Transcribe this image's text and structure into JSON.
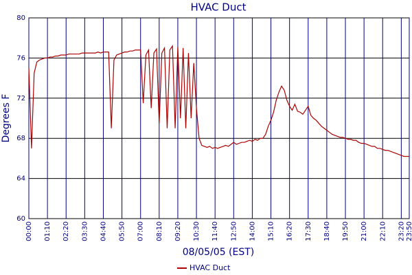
{
  "chart_data": {
    "type": "line",
    "title": "HVAC Duct",
    "x_label": "08/05/05 (EST)",
    "y_label": "Degrees F",
    "x": [
      "00:00",
      "00:10",
      "00:20",
      "00:30",
      "00:40",
      "00:50",
      "01:00",
      "01:10",
      "01:20",
      "01:30",
      "01:40",
      "01:50",
      "02:00",
      "02:10",
      "02:20",
      "02:30",
      "02:40",
      "02:50",
      "03:00",
      "03:10",
      "03:20",
      "03:30",
      "03:40",
      "03:50",
      "04:00",
      "04:10",
      "04:20",
      "04:30",
      "04:40",
      "04:50",
      "05:00",
      "05:10",
      "05:20",
      "05:30",
      "05:40",
      "05:50",
      "06:00",
      "06:10",
      "06:20",
      "06:30",
      "06:40",
      "06:50",
      "07:00",
      "07:10",
      "07:20",
      "07:30",
      "07:40",
      "07:50",
      "08:00",
      "08:10",
      "08:20",
      "08:30",
      "08:40",
      "08:50",
      "09:00",
      "09:10",
      "09:20",
      "09:30",
      "09:40",
      "09:50",
      "10:00",
      "10:10",
      "10:20",
      "10:30",
      "10:40",
      "10:50",
      "11:00",
      "11:10",
      "11:20",
      "11:30",
      "11:40",
      "11:50",
      "12:00",
      "12:10",
      "12:20",
      "12:30",
      "12:40",
      "12:50",
      "13:00",
      "13:10",
      "13:20",
      "13:30",
      "13:40",
      "13:50",
      "14:00",
      "14:10",
      "14:20",
      "14:30",
      "14:40",
      "14:50",
      "15:00",
      "15:10",
      "15:20",
      "15:30",
      "15:40",
      "15:50",
      "16:00",
      "16:10",
      "16:20",
      "16:30",
      "16:40",
      "16:50",
      "17:00",
      "17:10",
      "17:20",
      "17:30",
      "17:40",
      "17:50",
      "18:00",
      "18:10",
      "18:20",
      "18:30",
      "18:40",
      "18:50",
      "19:00",
      "19:10",
      "19:20",
      "19:30",
      "19:40",
      "19:50",
      "20:00",
      "20:10",
      "20:20",
      "20:30",
      "20:40",
      "20:50",
      "21:00",
      "21:10",
      "21:20",
      "21:30",
      "21:40",
      "21:50",
      "22:00",
      "22:10",
      "22:20",
      "22:30",
      "22:40",
      "22:50",
      "23:00",
      "23:10",
      "23:20",
      "23:30",
      "23:40",
      "23:50"
    ],
    "series": [
      {
        "name": "HVAC Duct",
        "color": "#aa0000",
        "values": [
          75,
          67,
          74.5,
          75.6,
          75.8,
          75.9,
          76.0,
          76.0,
          76.1,
          76.1,
          76.2,
          76.2,
          76.3,
          76.3,
          76.3,
          76.4,
          76.4,
          76.4,
          76.4,
          76.4,
          76.5,
          76.5,
          76.5,
          76.5,
          76.5,
          76.5,
          76.6,
          76.5,
          76.6,
          76.6,
          76.6,
          69,
          75.8,
          76.3,
          76.4,
          76.5,
          76.6,
          76.6,
          76.7,
          76.7,
          76.8,
          76.8,
          76.8,
          71.5,
          76.3,
          76.8,
          71,
          76.5,
          76.9,
          69.5,
          76.5,
          77,
          69,
          76.8,
          77.2,
          69,
          77.1,
          70,
          77,
          69,
          76.5,
          70,
          75.5,
          71,
          68,
          67.3,
          67.2,
          67.1,
          67.2,
          67.0,
          67.1,
          67.0,
          67.1,
          67.2,
          67.3,
          67.2,
          67.4,
          67.6,
          67.4,
          67.5,
          67.6,
          67.6,
          67.7,
          67.8,
          67.7,
          67.9,
          67.8,
          68.0,
          68.0,
          68.4,
          69.2,
          69.8,
          70.6,
          71.8,
          72.6,
          73.2,
          72.8,
          71.8,
          71.2,
          70.8,
          71.4,
          70.7,
          70.6,
          70.4,
          70.8,
          71.2,
          70.3,
          70.0,
          69.8,
          69.5,
          69.2,
          69.0,
          68.8,
          68.6,
          68.4,
          68.3,
          68.2,
          68.1,
          68.1,
          68.0,
          67.9,
          67.9,
          67.8,
          67.8,
          67.6,
          67.5,
          67.5,
          67.4,
          67.3,
          67.2,
          67.2,
          67.0,
          67.0,
          66.9,
          66.8,
          66.8,
          66.7,
          66.6,
          66.5,
          66.4,
          66.3,
          66.2,
          66.2,
          66.2
        ]
      }
    ],
    "xlim": [
      "00:00",
      "23:50"
    ],
    "xticks": [
      "00:00",
      "01:10",
      "02:20",
      "03:30",
      "04:40",
      "05:50",
      "07:00",
      "08:10",
      "09:20",
      "10:30",
      "11:40",
      "12:50",
      "14:00",
      "15:10",
      "16:20",
      "17:30",
      "18:40",
      "19:50",
      "21:00",
      "22:10",
      "23:20",
      "23:50"
    ],
    "ylim": [
      60,
      80
    ],
    "yticks": [
      60,
      64,
      68,
      72,
      76,
      80
    ],
    "grid": true,
    "legend": "bottom"
  }
}
